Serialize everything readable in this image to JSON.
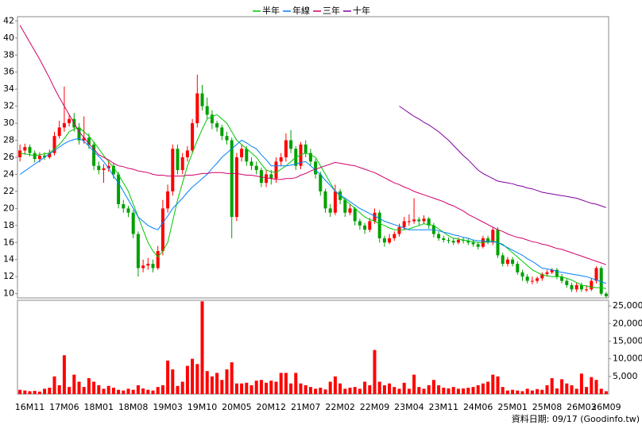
{
  "chart_data": {
    "type": "candlestick",
    "legend": "top",
    "grid": false,
    "up_color": "#ff0000",
    "down_color": "#00a000",
    "categories": [
      null,
      null,
      "16M11",
      null,
      null,
      null,
      null,
      null,
      null,
      "17M06",
      null,
      null,
      null,
      null,
      null,
      null,
      "18M01",
      null,
      null,
      null,
      null,
      null,
      null,
      "18M08",
      null,
      null,
      null,
      null,
      null,
      null,
      "19M03",
      null,
      null,
      null,
      null,
      null,
      null,
      "19M10",
      null,
      null,
      null,
      null,
      null,
      null,
      "20M05",
      null,
      null,
      null,
      null,
      null,
      null,
      "20M12",
      null,
      null,
      null,
      null,
      null,
      null,
      "21M07",
      null,
      null,
      null,
      null,
      null,
      null,
      "22M02",
      null,
      null,
      null,
      null,
      null,
      null,
      "22M09",
      null,
      null,
      null,
      null,
      null,
      null,
      "23M04",
      null,
      null,
      null,
      null,
      null,
      null,
      "23M11",
      null,
      null,
      null,
      null,
      null,
      null,
      "24M06",
      null,
      null,
      null,
      null,
      null,
      null,
      "25M01",
      null,
      null,
      null,
      null,
      null,
      null,
      "25M08",
      null,
      null,
      null,
      null,
      null,
      null,
      "26M03",
      null,
      null,
      null,
      null,
      "26M09"
    ],
    "open": [
      26.0,
      26.8,
      27.2,
      26.5,
      25.8,
      26.2,
      26.0,
      26.5,
      28.5,
      29.5,
      30.0,
      30.5,
      29.5,
      28.0,
      28.3,
      27.5,
      25.0,
      24.5,
      24.7,
      25.0,
      24.0,
      20.5,
      20.0,
      19.5,
      17.0,
      13.0,
      13.3,
      13.5,
      13.0,
      15.0,
      20.0,
      22.0,
      27.0,
      24.5,
      26.0,
      26.8,
      30.0,
      33.5,
      32.0,
      31.0,
      30.0,
      29.5,
      28.5,
      28.0,
      19.0,
      26.0,
      27.0,
      25.5,
      25.0,
      24.5,
      23.0,
      24.0,
      23.5,
      25.5,
      26.0,
      28.0,
      27.0,
      25.0,
      27.5,
      26.5,
      25.5,
      24.0,
      22.0,
      20.0,
      19.5,
      22.0,
      21.0,
      19.5,
      20.0,
      18.5,
      18.0,
      17.5,
      18.5,
      19.5,
      16.5,
      16.0,
      16.5,
      17.0,
      17.8,
      18.5,
      18.5,
      18.7,
      18.5,
      18.8,
      18.0,
      17.0,
      16.5,
      16.3,
      16.2,
      16.0,
      16.3,
      16.2,
      16.0,
      15.8,
      15.5,
      16.5,
      16.0,
      17.5,
      14.5,
      13.5,
      14.0,
      13.5,
      12.5,
      12.0,
      11.5,
      11.5,
      11.8,
      12.3,
      12.5,
      12.8,
      12.0,
      11.5,
      11.0,
      10.5,
      11.0,
      10.5,
      10.5,
      11.5,
      13.0,
      10.0
    ],
    "high": [
      27.5,
      27.6,
      27.5,
      26.8,
      26.6,
      26.6,
      26.9,
      29.0,
      30.3,
      34.3,
      31.0,
      31.2,
      30.0,
      30.8,
      28.8,
      27.8,
      25.5,
      25.2,
      25.6,
      25.3,
      24.3,
      21.0,
      20.3,
      19.8,
      17.3,
      14.0,
      14.2,
      14.0,
      15.6,
      21.0,
      22.8,
      27.5,
      27.5,
      26.5,
      27.3,
      30.5,
      35.7,
      34.5,
      33.0,
      31.5,
      30.3,
      29.8,
      29.0,
      28.3,
      26.5,
      27.5,
      27.3,
      26.0,
      25.5,
      24.8,
      24.5,
      24.5,
      26.0,
      26.5,
      28.8,
      29.2,
      27.3,
      27.8,
      28.0,
      27.0,
      25.8,
      24.3,
      22.3,
      20.5,
      22.8,
      22.3,
      21.3,
      20.5,
      20.2,
      18.8,
      18.3,
      18.9,
      20.0,
      19.8,
      16.8,
      17.0,
      17.3,
      18.2,
      19.0,
      19.3,
      21.2,
      19.0,
      19.2,
      19.0,
      18.3,
      17.3,
      16.8,
      16.6,
      16.5,
      16.6,
      16.6,
      16.5,
      16.3,
      16.0,
      16.8,
      16.8,
      17.8,
      17.8,
      14.8,
      14.3,
      14.3,
      13.8,
      12.8,
      12.3,
      12.0,
      12.0,
      12.5,
      12.8,
      13.0,
      13.0,
      12.3,
      11.8,
      11.3,
      11.3,
      11.3,
      11.0,
      11.8,
      13.2,
      13.2,
      10.2
    ],
    "low": [
      25.5,
      26.3,
      26.1,
      25.4,
      25.4,
      25.7,
      25.8,
      26.2,
      28.2,
      29.0,
      29.6,
      29.0,
      27.5,
      27.6,
      27.0,
      24.5,
      24.0,
      23.0,
      24.3,
      23.5,
      20.0,
      19.5,
      19.0,
      16.5,
      12.0,
      12.5,
      12.8,
      12.5,
      12.8,
      14.5,
      19.5,
      21.5,
      24.0,
      24.0,
      25.5,
      26.5,
      29.5,
      31.5,
      30.5,
      29.3,
      29.0,
      28.0,
      27.5,
      16.5,
      18.5,
      25.5,
      25.0,
      24.5,
      24.0,
      22.5,
      22.5,
      22.8,
      23.0,
      25.0,
      25.5,
      26.5,
      24.5,
      24.6,
      26.0,
      25.0,
      23.5,
      21.5,
      19.5,
      19.0,
      19.2,
      20.5,
      19.0,
      19.2,
      18.0,
      17.5,
      17.0,
      17.2,
      18.2,
      16.0,
      15.5,
      15.8,
      16.2,
      16.7,
      17.5,
      18.0,
      18.2,
      18.0,
      18.2,
      17.6,
      16.6,
      16.2,
      16.0,
      15.9,
      15.7,
      15.8,
      15.9,
      15.7,
      15.5,
      15.2,
      15.3,
      15.8,
      15.7,
      14.2,
      13.2,
      13.2,
      13.2,
      12.2,
      11.5,
      11.2,
      11.1,
      11.2,
      11.5,
      12.0,
      12.3,
      11.7,
      11.2,
      10.7,
      10.2,
      10.2,
      10.2,
      10.2,
      10.3,
      11.2,
      9.8,
      9.5
    ],
    "close": [
      26.8,
      27.2,
      26.5,
      25.8,
      26.2,
      26.0,
      26.5,
      28.5,
      29.5,
      30.0,
      30.5,
      29.5,
      28.0,
      28.3,
      27.5,
      25.0,
      24.5,
      24.7,
      25.0,
      24.0,
      20.5,
      20.0,
      19.5,
      17.0,
      13.0,
      13.3,
      13.5,
      13.0,
      15.0,
      20.0,
      22.0,
      27.0,
      24.5,
      26.0,
      26.8,
      30.0,
      33.5,
      32.0,
      31.0,
      30.0,
      29.5,
      28.5,
      28.0,
      19.0,
      26.0,
      27.0,
      25.5,
      25.0,
      24.5,
      23.0,
      24.0,
      23.5,
      25.5,
      26.0,
      28.0,
      27.0,
      25.0,
      27.5,
      26.5,
      25.5,
      24.0,
      22.0,
      20.0,
      19.5,
      22.0,
      21.0,
      19.5,
      20.0,
      18.5,
      18.0,
      17.5,
      18.5,
      19.5,
      16.5,
      16.0,
      16.5,
      17.0,
      17.8,
      18.5,
      18.5,
      18.7,
      18.5,
      18.8,
      18.0,
      17.0,
      16.5,
      16.3,
      16.2,
      16.0,
      16.3,
      16.2,
      16.0,
      15.8,
      15.5,
      16.5,
      16.0,
      17.5,
      14.5,
      13.5,
      14.0,
      13.5,
      12.5,
      12.0,
      11.5,
      11.5,
      11.8,
      12.3,
      12.5,
      12.8,
      12.0,
      11.5,
      11.0,
      10.5,
      11.0,
      10.5,
      10.5,
      11.5,
      13.0,
      10.0,
      9.7
    ],
    "ylim": [
      9.5,
      42.5
    ],
    "yticks": [
      10,
      12,
      14,
      16,
      18,
      20,
      22,
      24,
      26,
      28,
      30,
      32,
      34,
      36,
      38,
      40,
      42
    ],
    "series": [
      {
        "name": "半年",
        "color": "#00c800",
        "values": [
          26.5,
          26.4,
          26.3,
          26.2,
          26.3,
          26.4,
          26.5,
          27.0,
          27.5,
          28.2,
          29.0,
          29.3,
          29.5,
          29.0,
          28.5,
          27.8,
          27.0,
          26.2,
          25.5,
          24.8,
          24.0,
          23.0,
          22.0,
          20.5,
          19.0,
          17.5,
          16.0,
          15.0,
          14.3,
          15.0,
          16.0,
          18.5,
          21.0,
          23.0,
          25.0,
          26.5,
          28.0,
          29.3,
          30.5,
          30.8,
          31.0,
          30.5,
          30.0,
          29.0,
          28.0,
          27.5,
          27.0,
          26.5,
          26.0,
          25.2,
          24.5,
          24.3,
          24.2,
          24.6,
          25.0,
          25.5,
          26.0,
          26.3,
          26.5,
          26.3,
          26.0,
          25.0,
          24.0,
          23.0,
          22.0,
          21.5,
          21.0,
          20.5,
          20.0,
          19.5,
          19.0,
          18.7,
          18.5,
          18.2,
          18.0,
          17.7,
          17.5,
          17.5,
          17.5,
          17.6,
          17.8,
          18.0,
          18.2,
          18.1,
          18.0,
          17.6,
          17.2,
          16.8,
          16.5,
          16.4,
          16.3,
          16.2,
          16.1,
          16.0,
          16.0,
          16.1,
          16.2,
          16.0,
          15.8,
          15.3,
          14.8,
          14.3,
          13.8,
          13.3,
          12.8,
          12.5,
          12.2,
          12.1,
          12.0,
          12.0,
          12.0,
          11.8,
          11.6,
          11.3,
          11.0,
          10.9,
          10.8,
          10.7,
          10.7,
          10.6
        ]
      },
      {
        "name": "年線",
        "color": "#0080ff",
        "values": [
          24.0,
          24.4,
          24.8,
          25.2,
          25.6,
          26.0,
          26.4,
          26.8,
          27.2,
          27.6,
          27.9,
          28.1,
          28.2,
          27.9,
          27.3,
          26.7,
          26.1,
          25.5,
          24.7,
          23.8,
          23.0,
          22.0,
          21.0,
          20.0,
          19.0,
          18.5,
          18.0,
          17.7,
          17.5,
          18.3,
          19.1,
          20.0,
          20.6,
          21.2,
          21.9,
          22.5,
          23.0,
          23.5,
          24.0,
          24.7,
          25.3,
          26.0,
          26.5,
          27.0,
          27.5,
          28.0,
          27.7,
          27.3,
          27.0,
          26.3,
          25.7,
          25.0,
          25.0,
          25.0,
          25.0,
          25.1,
          25.2,
          25.4,
          25.5,
          25.0,
          24.5,
          24.0,
          23.3,
          22.7,
          22.0,
          21.6,
          21.2,
          20.8,
          20.4,
          20.0,
          19.7,
          19.4,
          19.1,
          18.8,
          18.5,
          18.3,
          18.1,
          17.9,
          17.7,
          17.5,
          17.5,
          17.5,
          17.5,
          17.5,
          17.5,
          17.4,
          17.2,
          17.1,
          16.9,
          16.8,
          16.6,
          16.5,
          16.3,
          16.2,
          16.2,
          16.1,
          16.1,
          16.0,
          15.7,
          15.4,
          15.1,
          14.8,
          14.5,
          14.1,
          13.8,
          13.4,
          13.0,
          12.9,
          12.8,
          12.6,
          12.5,
          12.4,
          12.3,
          12.2,
          12.1,
          12.0,
          11.8,
          11.6,
          11.4,
          11.2
        ]
      },
      {
        "name": "三年",
        "color": "#d0006a",
        "values": [
          41.5,
          40.5,
          39.5,
          38.5,
          37.5,
          36.4,
          35.3,
          34.1,
          33.0,
          32.0,
          31.0,
          30.0,
          29.0,
          28.3,
          27.6,
          27.0,
          26.3,
          26.0,
          25.7,
          25.3,
          25.0,
          24.9,
          24.7,
          24.6,
          24.4,
          24.3,
          24.2,
          24.0,
          23.9,
          23.9,
          23.8,
          23.8,
          23.8,
          23.8,
          23.9,
          23.9,
          24.0,
          24.1,
          24.1,
          24.2,
          24.2,
          24.2,
          24.1,
          24.1,
          24.1,
          24.0,
          23.9,
          23.9,
          23.8,
          23.7,
          23.6,
          23.5,
          23.4,
          23.4,
          23.5,
          23.5,
          23.6,
          23.9,
          24.1,
          24.4,
          24.6,
          24.8,
          25.0,
          25.2,
          25.4,
          25.3,
          25.2,
          25.1,
          25.0,
          24.8,
          24.6,
          24.4,
          24.2,
          23.9,
          23.6,
          23.3,
          23.0,
          22.8,
          22.5,
          22.3,
          22.0,
          21.8,
          21.6,
          21.4,
          21.2,
          21.0,
          20.8,
          20.5,
          20.3,
          20.0,
          19.7,
          19.3,
          19.0,
          18.7,
          18.4,
          18.1,
          17.8,
          17.5,
          17.3,
          17.0,
          16.8,
          16.6,
          16.5,
          16.3,
          16.1,
          16.0,
          15.8,
          15.7,
          15.5,
          15.3,
          15.2,
          15.0,
          14.8,
          14.6,
          14.4,
          14.2,
          14.0,
          13.8,
          13.6,
          13.4
        ]
      },
      {
        "name": "十年",
        "color": "#8000a0",
        "values": [
          null,
          null,
          null,
          null,
          null,
          null,
          null,
          null,
          null,
          null,
          null,
          null,
          null,
          null,
          null,
          null,
          null,
          null,
          null,
          null,
          null,
          null,
          null,
          null,
          null,
          null,
          null,
          null,
          null,
          null,
          null,
          null,
          null,
          null,
          null,
          null,
          null,
          null,
          null,
          null,
          null,
          null,
          null,
          null,
          null,
          null,
          null,
          null,
          null,
          null,
          null,
          null,
          null,
          null,
          null,
          null,
          null,
          null,
          null,
          null,
          null,
          null,
          null,
          null,
          null,
          null,
          null,
          null,
          null,
          null,
          null,
          null,
          null,
          null,
          null,
          null,
          null,
          32.0,
          31.6,
          31.2,
          30.8,
          30.5,
          30.1,
          29.8,
          29.4,
          29.0,
          28.5,
          28.0,
          27.4,
          26.8,
          26.2,
          25.7,
          25.1,
          24.5,
          24.1,
          23.8,
          23.5,
          23.2,
          23.1,
          23.0,
          22.9,
          22.7,
          22.6,
          22.4,
          22.3,
          22.1,
          21.9,
          21.8,
          21.7,
          21.6,
          21.5,
          21.4,
          21.3,
          21.2,
          21.0,
          20.8,
          20.6,
          20.5,
          20.3,
          20.1
        ]
      }
    ],
    "volume": {
      "color": "#ff0000",
      "ylim": [
        0,
        26600
      ],
      "yticks": [
        {
          "value": 5000,
          "label": "5,000"
        },
        {
          "value": 10000,
          "label": "10,000"
        },
        {
          "value": 15000,
          "label": "15,000"
        },
        {
          "value": 20000,
          "label": "20,000"
        },
        {
          "value": 25000,
          "label": "25,000"
        }
      ],
      "values": [
        1200,
        1000,
        800,
        900,
        700,
        1500,
        1800,
        5000,
        2500,
        11000,
        2000,
        5500,
        3500,
        2000,
        4500,
        3500,
        2500,
        1500,
        2300,
        1800,
        1200,
        1000,
        1500,
        1200,
        2500,
        1600,
        1200,
        1000,
        2000,
        2500,
        9500,
        7000,
        2300,
        3500,
        8000,
        10000,
        8500,
        26300,
        6500,
        5000,
        6000,
        4000,
        7000,
        9000,
        3000,
        3000,
        3200,
        2500,
        3800,
        4000,
        3200,
        3800,
        3500,
        6000,
        6000,
        3000,
        6000,
        3000,
        2500,
        2000,
        1500,
        1800,
        1300,
        3500,
        5000,
        3000,
        1500,
        1800,
        2000,
        1500,
        3500,
        2500,
        12500,
        3500,
        2500,
        3000,
        2000,
        1500,
        3200,
        1500,
        5500,
        2000,
        1500,
        2500,
        4000,
        2500,
        1800,
        1600,
        2000,
        1500,
        1600,
        1800,
        2000,
        2500,
        3000,
        3500,
        5500,
        5000,
        2000,
        1000,
        1200,
        1000,
        800,
        1500,
        1000,
        1400,
        1200,
        2500,
        4500,
        1600,
        4200,
        3000,
        2500,
        1500,
        5800,
        2000,
        4800,
        4000,
        1500,
        800
      ]
    }
  },
  "footer": "資料日期: 09/17 (Goodinfo.tw)"
}
